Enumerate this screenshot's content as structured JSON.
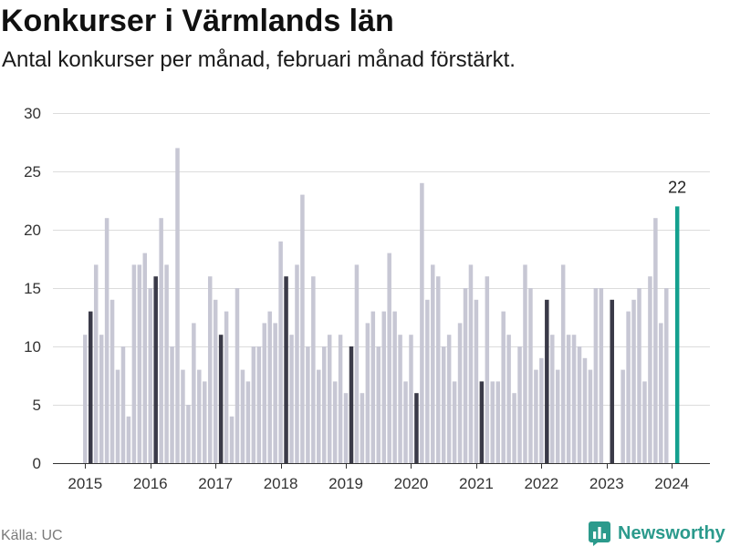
{
  "chart_data": {
    "type": "bar",
    "title": "Konkurser i Värmlands län",
    "subtitle": "Antal konkurser per månad, februari månad förstärkt.",
    "x": [
      "2015-01",
      "2015-02",
      "2015-03",
      "2015-04",
      "2015-05",
      "2015-06",
      "2015-07",
      "2015-08",
      "2015-09",
      "2015-10",
      "2015-11",
      "2015-12",
      "2016-01",
      "2016-02",
      "2016-03",
      "2016-04",
      "2016-05",
      "2016-06",
      "2016-07",
      "2016-08",
      "2016-09",
      "2016-10",
      "2016-11",
      "2016-12",
      "2017-01",
      "2017-02",
      "2017-03",
      "2017-04",
      "2017-05",
      "2017-06",
      "2017-07",
      "2017-08",
      "2017-09",
      "2017-10",
      "2017-11",
      "2017-12",
      "2018-01",
      "2018-02",
      "2018-03",
      "2018-04",
      "2018-05",
      "2018-06",
      "2018-07",
      "2018-08",
      "2018-09",
      "2018-10",
      "2018-11",
      "2018-12",
      "2019-01",
      "2019-02",
      "2019-03",
      "2019-04",
      "2019-05",
      "2019-06",
      "2019-07",
      "2019-08",
      "2019-09",
      "2019-10",
      "2019-11",
      "2019-12",
      "2020-01",
      "2020-02",
      "2020-03",
      "2020-04",
      "2020-05",
      "2020-06",
      "2020-07",
      "2020-08",
      "2020-09",
      "2020-10",
      "2020-11",
      "2020-12",
      "2021-01",
      "2021-02",
      "2021-03",
      "2021-04",
      "2021-05",
      "2021-06",
      "2021-07",
      "2021-08",
      "2021-09",
      "2021-10",
      "2021-11",
      "2021-12",
      "2022-01",
      "2022-02",
      "2022-03",
      "2022-04",
      "2022-05",
      "2022-06",
      "2022-07",
      "2022-08",
      "2022-09",
      "2022-10",
      "2022-11",
      "2022-12",
      "2023-01",
      "2023-02",
      "2023-03",
      "2023-04",
      "2023-05",
      "2023-06",
      "2023-07",
      "2023-08",
      "2023-09",
      "2023-10",
      "2023-11",
      "2023-12",
      "2024-01",
      "2024-02"
    ],
    "values": [
      11,
      13,
      17,
      11,
      21,
      14,
      8,
      10,
      4,
      17,
      17,
      18,
      15,
      16,
      21,
      17,
      10,
      27,
      8,
      5,
      12,
      8,
      7,
      16,
      14,
      11,
      13,
      4,
      15,
      8,
      7,
      10,
      10,
      12,
      13,
      12,
      19,
      16,
      11,
      17,
      23,
      10,
      16,
      8,
      10,
      11,
      7,
      11,
      6,
      10,
      17,
      6,
      12,
      13,
      10,
      13,
      18,
      13,
      11,
      7,
      11,
      6,
      24,
      14,
      17,
      16,
      10,
      11,
      7,
      12,
      15,
      17,
      14,
      7,
      16,
      7,
      7,
      13,
      11,
      6,
      10,
      17,
      15,
      8,
      9,
      14,
      11,
      8,
      17,
      11,
      11,
      10,
      9,
      8,
      15,
      15,
      0,
      14,
      0,
      8,
      13,
      14,
      15,
      7,
      16,
      21,
      12,
      15,
      0,
      22
    ],
    "ylim": [
      0,
      30
    ],
    "yticks": [
      0,
      5,
      10,
      15,
      20,
      25,
      30
    ],
    "xticks": [
      "2015",
      "2016",
      "2017",
      "2018",
      "2019",
      "2020",
      "2021",
      "2022",
      "2023",
      "2024"
    ],
    "grid": true,
    "annotations": [
      {
        "x": "2024-02",
        "text": "22"
      }
    ],
    "colors": {
      "bars": "#c7c7d4",
      "february": "#3a3a48",
      "latest": "#14a08f"
    }
  },
  "footer": {
    "source": "Källa: UC",
    "brand": "Newsworthy",
    "brand_icon": "bar-chart-bubble-icon",
    "brand_color": "#2b9a8c"
  }
}
